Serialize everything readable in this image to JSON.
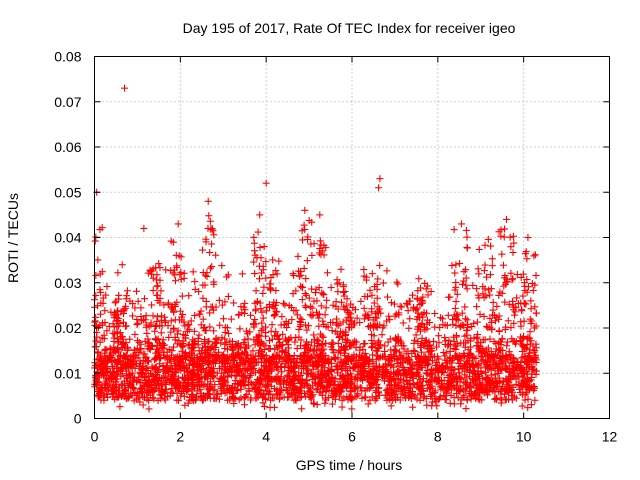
{
  "chart_data": {
    "type": "scatter",
    "title": "Day 195 of 2017, Rate Of TEC Index for receiver igeo",
    "xlabel": "GPS time / hours",
    "ylabel": "ROTI / TECUs",
    "xlim": [
      0,
      12
    ],
    "ylim": [
      0,
      0.08
    ],
    "x_ticks": [
      "0",
      "2",
      "4",
      "6",
      "8",
      "10",
      "12"
    ],
    "y_ticks": [
      "0",
      "0.01",
      "0.02",
      "0.03",
      "0.04",
      "0.05",
      "0.06",
      "0.07",
      "0.08"
    ],
    "grid": true,
    "marker": "+",
    "series_color": "#ff0000",
    "data_extent_hours": [
      0,
      10.3
    ],
    "notable_points": [
      {
        "x": 0.7,
        "y": 0.073
      },
      {
        "x": 4.0,
        "y": 0.052
      },
      {
        "x": 6.65,
        "y": 0.053
      },
      {
        "x": 6.62,
        "y": 0.051
      },
      {
        "x": 0.05,
        "y": 0.05
      },
      {
        "x": 5.25,
        "y": 0.045
      },
      {
        "x": 4.9,
        "y": 0.046
      },
      {
        "x": 2.65,
        "y": 0.048
      },
      {
        "x": 3.85,
        "y": 0.045
      },
      {
        "x": 9.6,
        "y": 0.044
      },
      {
        "x": 8.55,
        "y": 0.043
      },
      {
        "x": 10.1,
        "y": 0.04
      },
      {
        "x": 1.15,
        "y": 0.042
      },
      {
        "x": 1.95,
        "y": 0.043
      }
    ]
  }
}
